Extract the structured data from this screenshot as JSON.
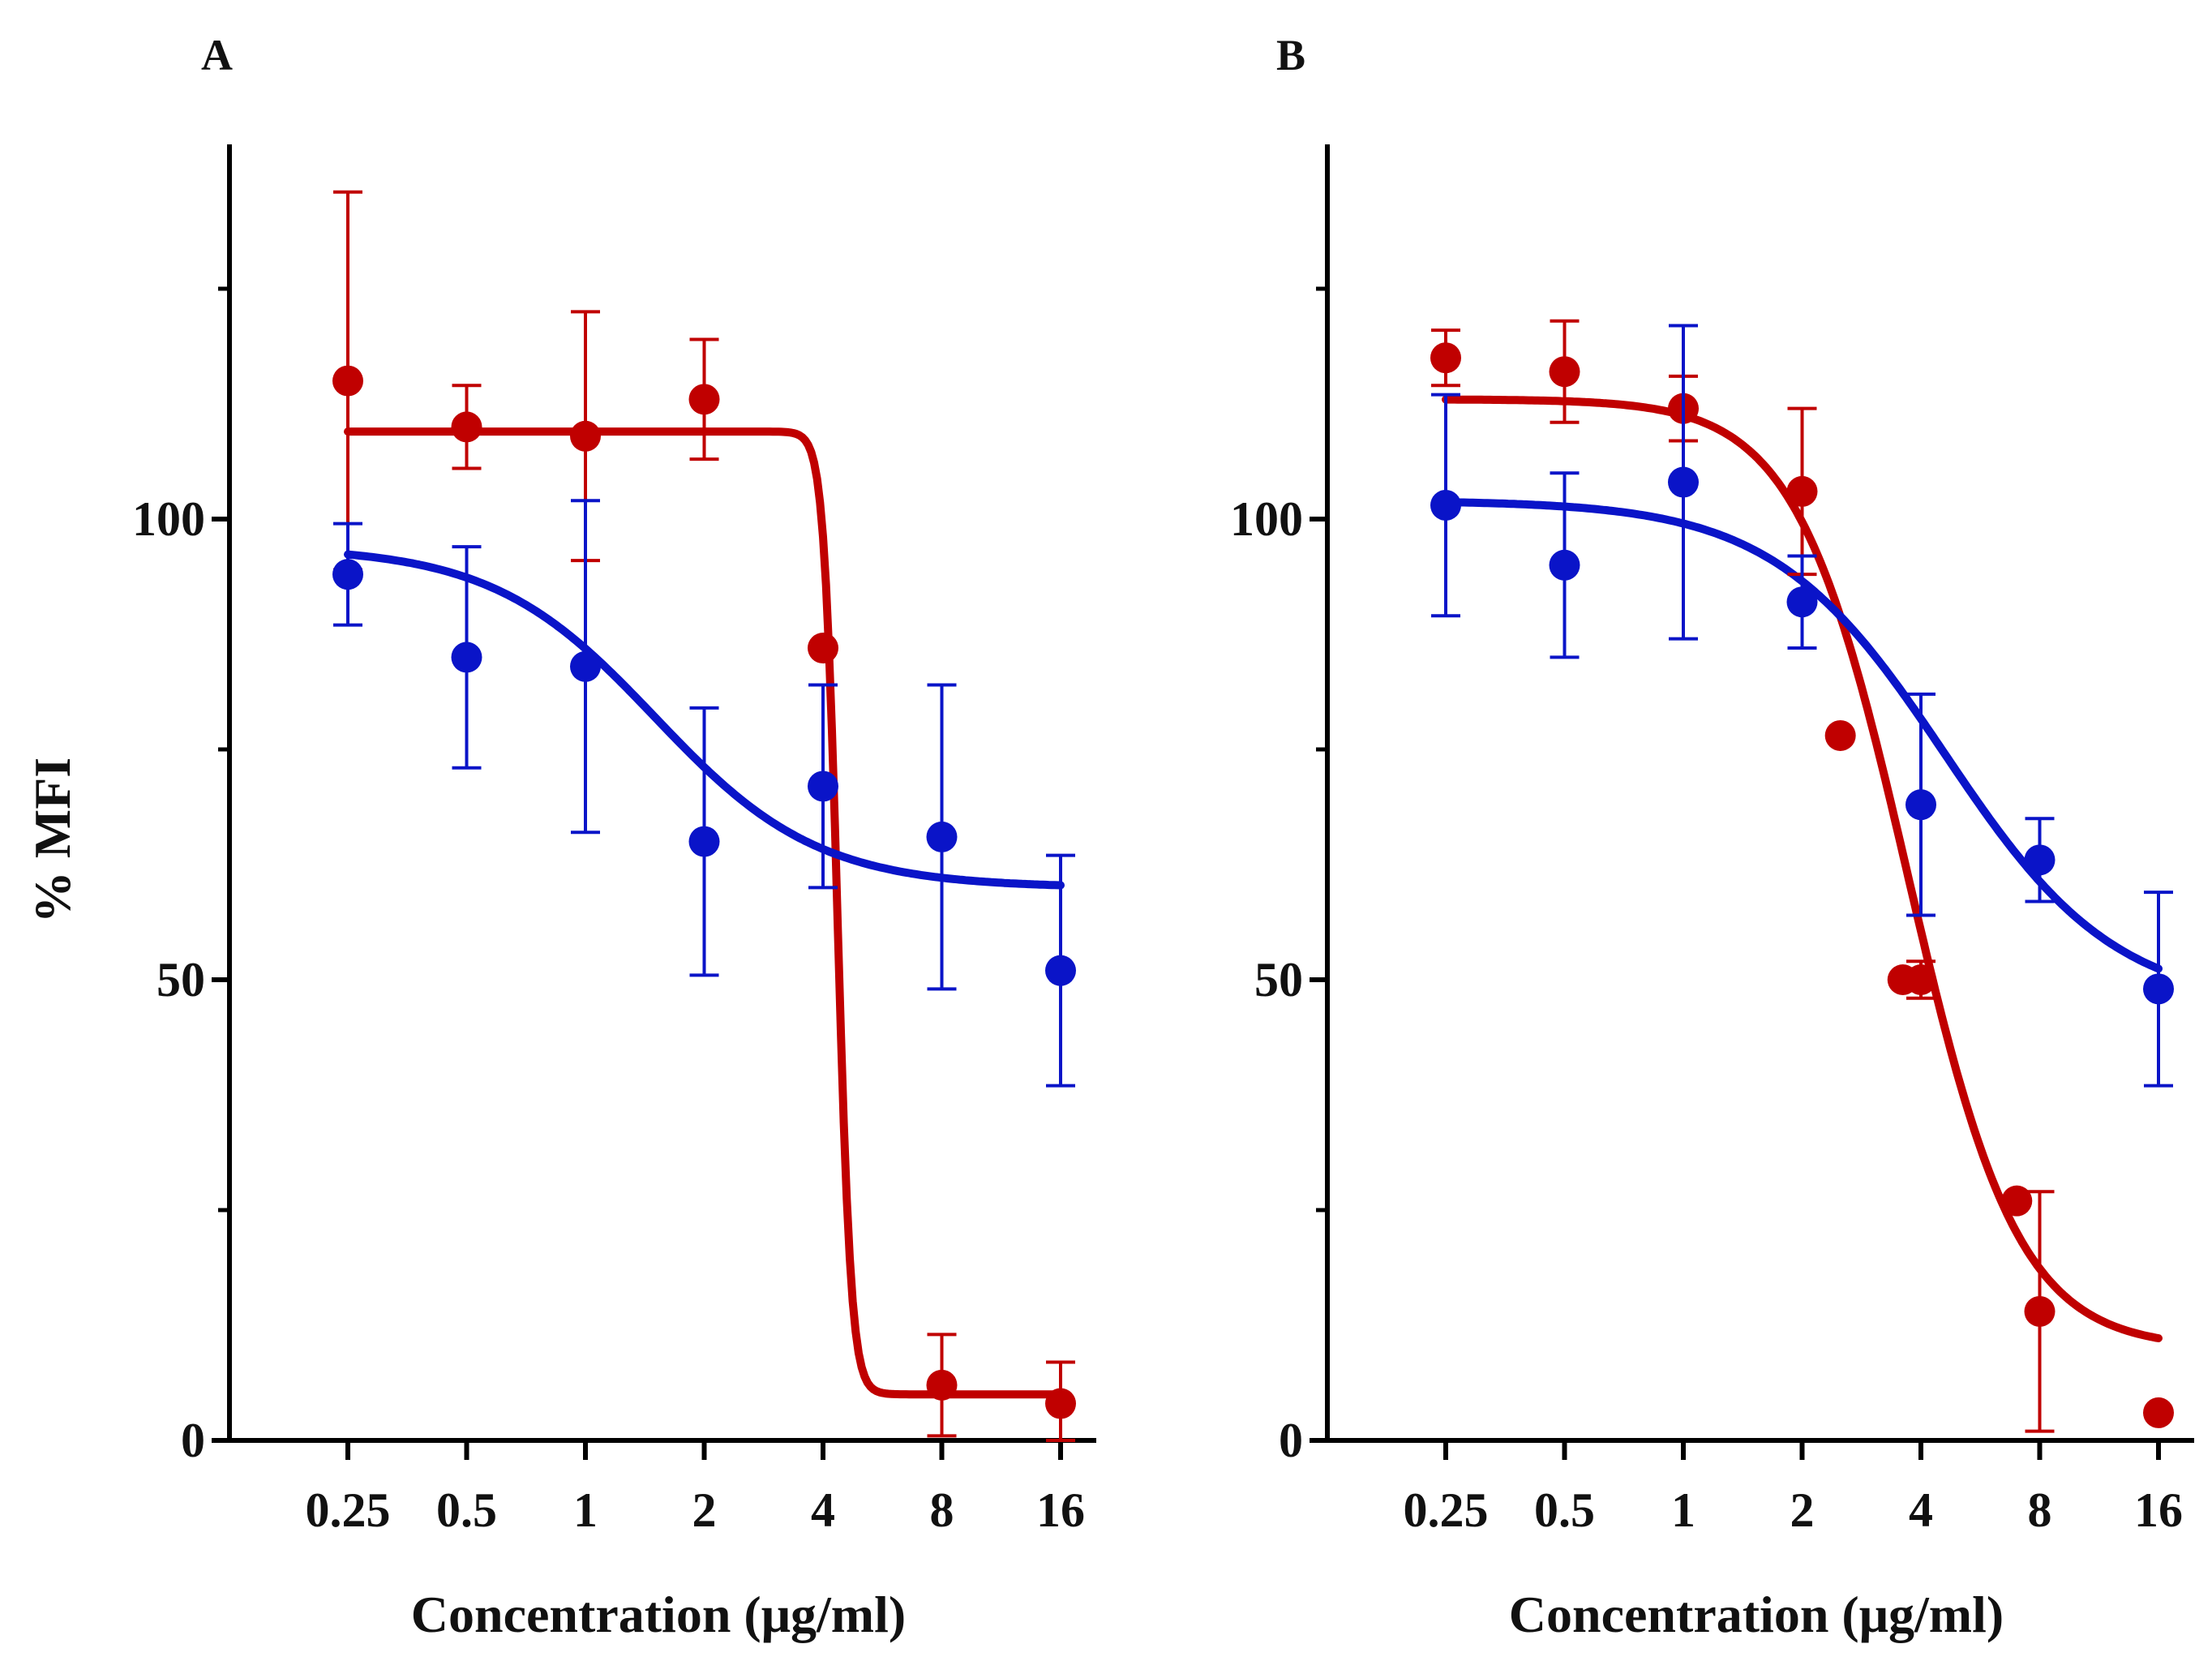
{
  "ylabel_shared": "% MFI",
  "chart_data": [
    {
      "type": "scatter",
      "panel": "A",
      "xscale": "log2",
      "xlabel": "Concentration (μg/ml)",
      "ylabel": "% MFI",
      "ylim": [
        0,
        140
      ],
      "yticks": [
        0,
        50,
        100
      ],
      "yminorticks": [
        25,
        75,
        125
      ],
      "xticks": [
        0.25,
        0.5,
        1,
        2,
        4,
        8,
        16
      ],
      "xtick_labels": [
        "0.25",
        "0.5",
        "1",
        "2",
        "4",
        "8",
        "16"
      ],
      "series": [
        {
          "name": "red",
          "color": "#c00000",
          "points": [
            {
              "x": 0.25,
              "y": 115,
              "err": 20.5
            },
            {
              "x": 0.5,
              "y": 110,
              "err": 4.5
            },
            {
              "x": 1,
              "y": 109,
              "err": 13.5
            },
            {
              "x": 2,
              "y": 113,
              "err": 6.5
            },
            {
              "x": 4,
              "y": 86,
              "err": 0
            },
            {
              "x": 8,
              "y": 6,
              "err": 5.5
            },
            {
              "x": 16,
              "y": 4,
              "err": 4.5
            }
          ],
          "fit": {
            "top": 109.5,
            "bottom": 5,
            "ec50": 4.35,
            "hill": 25
          }
        },
        {
          "name": "blue",
          "color": "#0a14c8",
          "points": [
            {
              "x": 0.25,
              "y": 94,
              "err": 5.5
            },
            {
              "x": 0.5,
              "y": 85,
              "err": 12
            },
            {
              "x": 1,
              "y": 84,
              "err": 18
            },
            {
              "x": 2,
              "y": 65,
              "err": 14.5
            },
            {
              "x": 4,
              "y": 71,
              "err": 11
            },
            {
              "x": 8,
              "y": 65.5,
              "err": 16.5
            },
            {
              "x": 16,
              "y": 51,
              "err": 12.5
            }
          ],
          "fit": {
            "top": 97,
            "bottom": 60,
            "ec50": 1.5,
            "hill": 2.1
          }
        }
      ]
    },
    {
      "type": "scatter",
      "panel": "B",
      "xscale": "log2",
      "xlabel": "Concentration (μg/ml)",
      "ylabel": "% MFI",
      "ylim": [
        0,
        140
      ],
      "yticks": [
        0,
        50,
        100
      ],
      "yminorticks": [
        25,
        75,
        125
      ],
      "xticks": [
        0.25,
        0.5,
        1,
        2,
        4,
        8,
        16
      ],
      "xtick_labels": [
        "0.25",
        "0.5",
        "1",
        "2",
        "4",
        "8",
        "16"
      ],
      "series": [
        {
          "name": "red",
          "color": "#c00000",
          "points": [
            {
              "x": 0.25,
              "y": 117.5,
              "err": 3
            },
            {
              "x": 0.5,
              "y": 116,
              "err": 5.5
            },
            {
              "x": 1,
              "y": 112,
              "err": 3.5
            },
            {
              "x": 2,
              "y": 103,
              "err": 9
            },
            {
              "x": 2.5,
              "y": 76.5,
              "err": 0
            },
            {
              "x": 3.6,
              "y": 50,
              "err": 0
            },
            {
              "x": 4,
              "y": 50,
              "err": 2
            },
            {
              "x": 7,
              "y": 26,
              "err": 0
            },
            {
              "x": 8,
              "y": 14,
              "err": 13
            },
            {
              "x": 16,
              "y": 3,
              "err": 0
            }
          ],
          "fit": {
            "top": 113,
            "bottom": 10,
            "ec50": 3.7,
            "hill": 3.1
          }
        },
        {
          "name": "blue",
          "color": "#0a14c8",
          "points": [
            {
              "x": 0.25,
              "y": 101.5,
              "err": 12
            },
            {
              "x": 0.5,
              "y": 95,
              "err": 10
            },
            {
              "x": 1,
              "y": 104,
              "err": 17
            },
            {
              "x": 2,
              "y": 91,
              "err": 5
            },
            {
              "x": 4,
              "y": 69,
              "err": 12
            },
            {
              "x": 8,
              "y": 63,
              "err": 4.5
            },
            {
              "x": 16,
              "y": 49,
              "err": 10.5
            }
          ],
          "fit": {
            "top": 102,
            "bottom": 47,
            "ec50": 4.6,
            "hill": 2.0
          }
        }
      ]
    }
  ]
}
